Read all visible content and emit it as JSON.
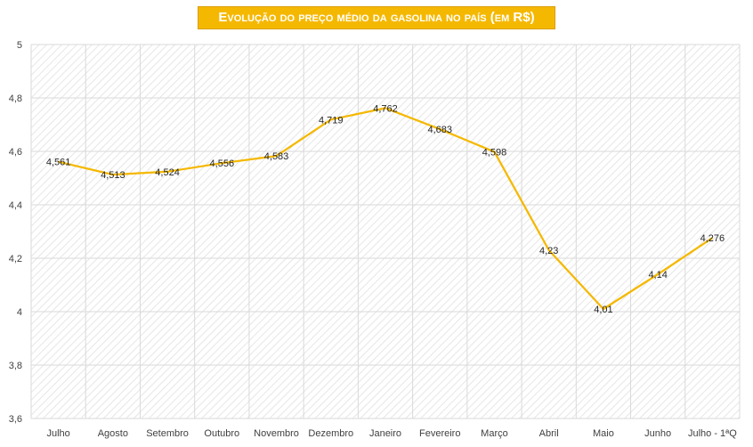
{
  "chart_data": {
    "type": "line",
    "title": "Evolução do preço médio da gasolina no país (em R$)",
    "categories": [
      "Julho",
      "Agosto",
      "Setembro",
      "Outubro",
      "Novembro",
      "Dezembro",
      "Janeiro",
      "Fevereiro",
      "Março",
      "Abril",
      "Maio",
      "Junho",
      "Julho - 1ªQ"
    ],
    "series": [
      {
        "values": [
          4.561,
          4.513,
          4.524,
          4.556,
          4.583,
          4.719,
          4.762,
          4.683,
          4.598,
          4.23,
          4.01,
          4.14,
          4.276
        ],
        "labels": [
          "4,561",
          "4,513",
          "4,524",
          "4,556",
          "4,583",
          "4,719",
          "4,762",
          "4,683",
          "4,598",
          "4,23",
          "4,01",
          "4,14",
          "4,276"
        ],
        "color": "#f5b800"
      }
    ],
    "ylim": [
      3.6,
      5
    ],
    "yticks": [
      3.6,
      3.8,
      4,
      4.2,
      4.4,
      4.6,
      4.8,
      5
    ],
    "ytick_labels": [
      "3,6",
      "3,8",
      "4",
      "4,2",
      "4,4",
      "4,6",
      "4,8",
      "5"
    ],
    "grid": true,
    "legend": "none",
    "colors": {
      "line": "#f5b800",
      "title_bg": "#f5b800",
      "title_text": "#ffffff",
      "grid": "#d9d9d9"
    }
  }
}
